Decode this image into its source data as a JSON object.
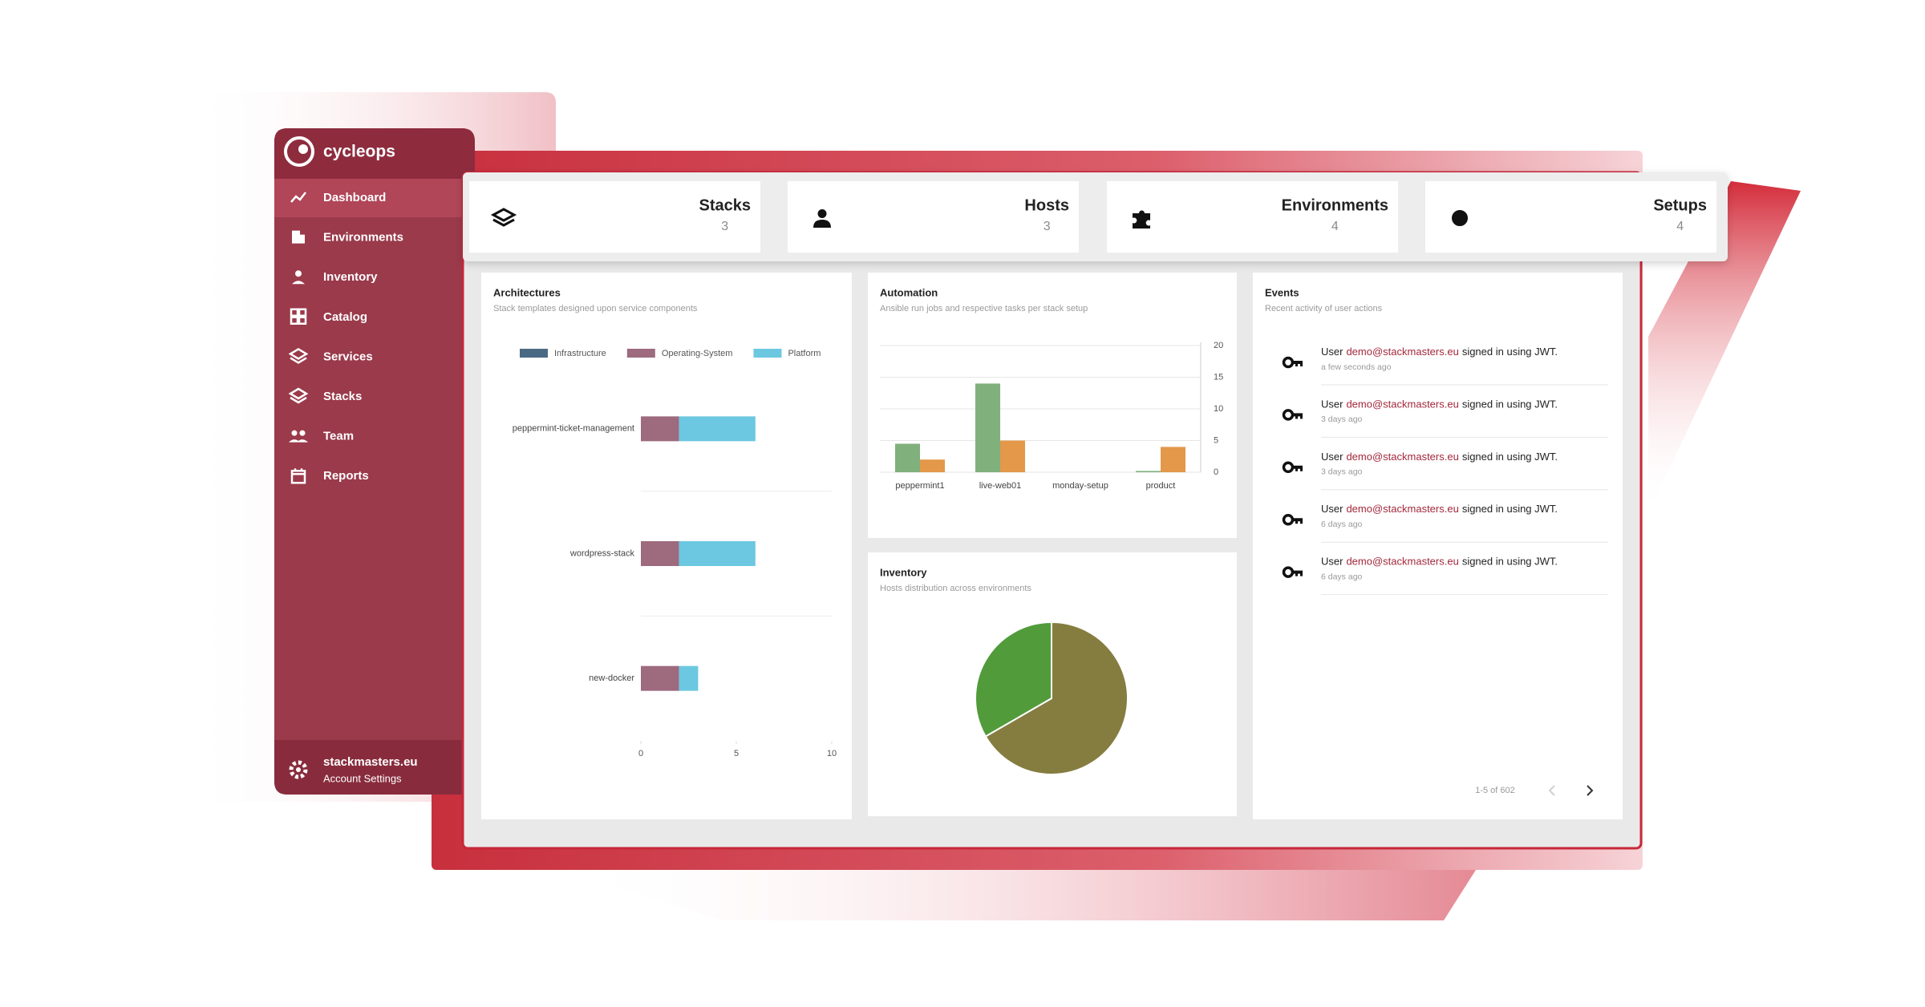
{
  "sidebar": {
    "brand": "cycleops",
    "nav": [
      "Dashboard",
      "Environments",
      "Inventory",
      "Catalog",
      "Services",
      "Stacks",
      "Team",
      "Reports"
    ],
    "account": {
      "name": "stackmasters.eu",
      "label": "Account Settings"
    }
  },
  "stats": [
    {
      "label": "Stacks",
      "value": 3
    },
    {
      "label": "Hosts",
      "value": 3
    },
    {
      "label": "Environments",
      "value": 4
    },
    {
      "label": "Setups",
      "value": 4
    }
  ],
  "chart_data": [
    {
      "type": "bar",
      "orientation": "horizontal",
      "stacked": true,
      "title": "Architectures",
      "subtitle": "Stack templates designed upon service components",
      "categories": [
        "peppermint-ticket-management",
        "wordpress-stack",
        "new-docker"
      ],
      "series": [
        {
          "name": "Infrastructure",
          "color": "#4a6a84",
          "values": [
            0,
            0,
            0
          ]
        },
        {
          "name": "Operating-System",
          "color": "#9d6a7e",
          "values": [
            2,
            2,
            2
          ]
        },
        {
          "name": "Platform",
          "color": "#6cc8e0",
          "values": [
            4,
            4,
            1
          ]
        }
      ],
      "xlim": [
        0,
        10
      ],
      "xticks": [
        0,
        5,
        10
      ]
    },
    {
      "type": "bar",
      "orientation": "vertical",
      "stacked": false,
      "title": "Automation",
      "subtitle": "Ansible run jobs and respective tasks per stack setup",
      "categories": [
        "peppermint1",
        "live-web01",
        "monday-setup",
        "product"
      ],
      "series": [
        {
          "color": "#80b07c",
          "values": [
            4.5,
            14,
            0,
            0.2
          ]
        },
        {
          "color": "#e3984a",
          "values": [
            2,
            5,
            0,
            4
          ]
        }
      ],
      "ylim": [
        0,
        20
      ],
      "yticks": [
        0,
        5,
        10,
        15,
        20
      ],
      "y_axis_side": "right",
      "grid": true
    },
    {
      "type": "pie",
      "title": "Inventory",
      "subtitle": "Hosts distribution across environments",
      "values": [
        2,
        1
      ],
      "colors": [
        "#857d40",
        "#519b3b"
      ]
    }
  ],
  "events": {
    "title": "Events",
    "subtitle": "Recent activity of user actions",
    "items": [
      {
        "user": "User",
        "email": "demo@stackmasters.eu",
        "action": "signed in using JWT.",
        "time": "a few seconds ago"
      },
      {
        "user": "User",
        "email": "demo@stackmasters.eu",
        "action": "signed in using JWT.",
        "time": "3 days ago"
      },
      {
        "user": "User",
        "email": "demo@stackmasters.eu",
        "action": "signed in using JWT.",
        "time": "3 days ago"
      },
      {
        "user": "User",
        "email": "demo@stackmasters.eu",
        "action": "signed in using JWT.",
        "time": "6 days ago"
      },
      {
        "user": "User",
        "email": "demo@stackmasters.eu",
        "action": "signed in using JWT.",
        "time": "6 days ago"
      }
    ],
    "pagination": "1-5 of 602"
  }
}
